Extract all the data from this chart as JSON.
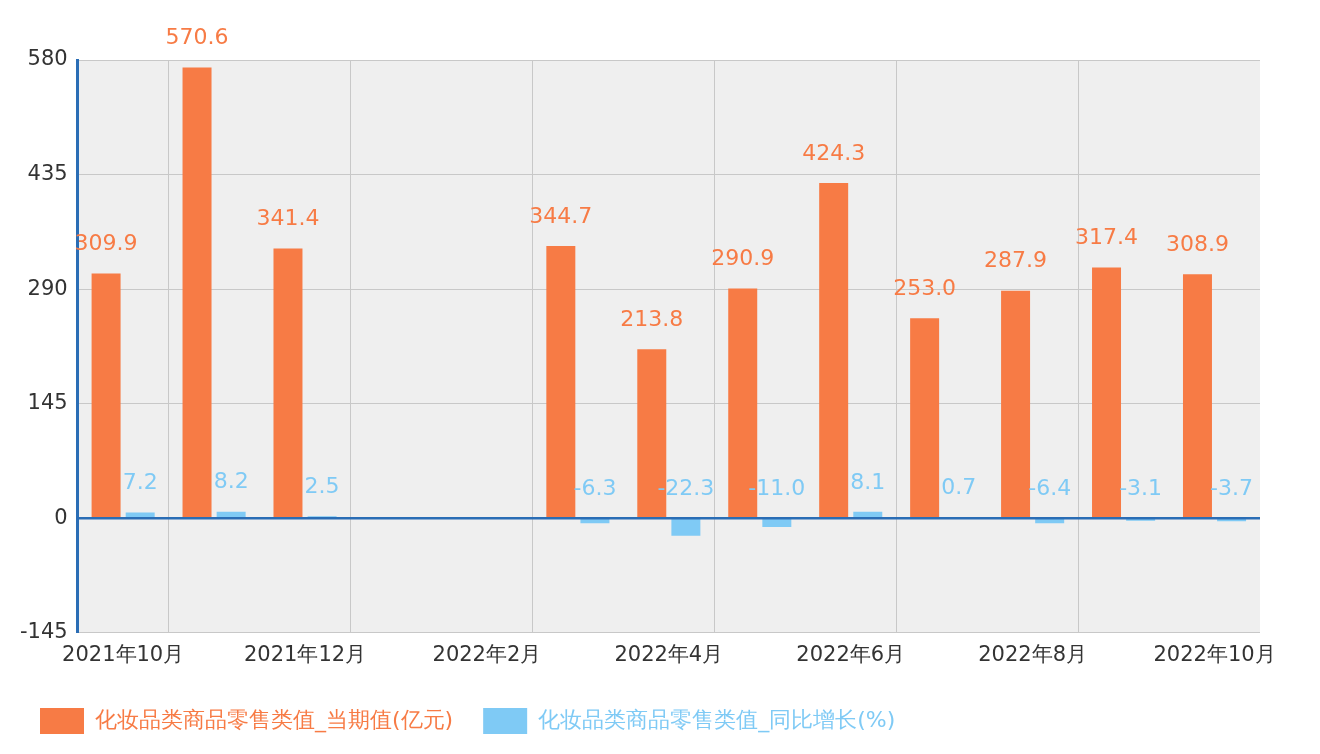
{
  "chart_data": {
    "type": "bar",
    "categories": [
      "2021年10月",
      null,
      "2021年12月",
      null,
      "2022年2月",
      null,
      "2022年4月",
      null,
      "2022年6月",
      null,
      "2022年8月",
      null,
      "2022年10月"
    ],
    "series": [
      {
        "name": "化妆品类商品零售类值_当期值(亿元)",
        "color": "#f77b45",
        "values": [
          309.9,
          570.6,
          341.4,
          null,
          null,
          344.7,
          213.8,
          290.9,
          424.3,
          253,
          287.9,
          317.4,
          308.9
        ],
        "value_labels": [
          "309.9",
          "570.6",
          "341.4",
          null,
          null,
          "344.7",
          "213.8",
          "290.9",
          "424.3",
          "253.0",
          "287.9",
          "317.4",
          "308.9"
        ]
      },
      {
        "name": "化妆品类商品零售类值_同比增长(%)",
        "color": "#7fcaf5",
        "values": [
          7.2,
          8.2,
          2.5,
          null,
          null,
          -6.3,
          -22.3,
          -11,
          8.1,
          0.7,
          -6.4,
          -3.1,
          -3.7
        ],
        "value_labels": [
          "7.2",
          "8.2",
          "2.5",
          null,
          null,
          "-6.3",
          "-22.3",
          "-11.0",
          "8.1",
          "0.7",
          "-6.4",
          "-3.1",
          "-3.7"
        ]
      }
    ],
    "ylim": [
      -145,
      580
    ],
    "yticks": [
      -145,
      0,
      145,
      290,
      435,
      580
    ],
    "ref_lines": [
      {
        "axis": "y",
        "value": 0,
        "color": "#2a6db5"
      }
    ],
    "grid": true,
    "legend": "bottom"
  }
}
